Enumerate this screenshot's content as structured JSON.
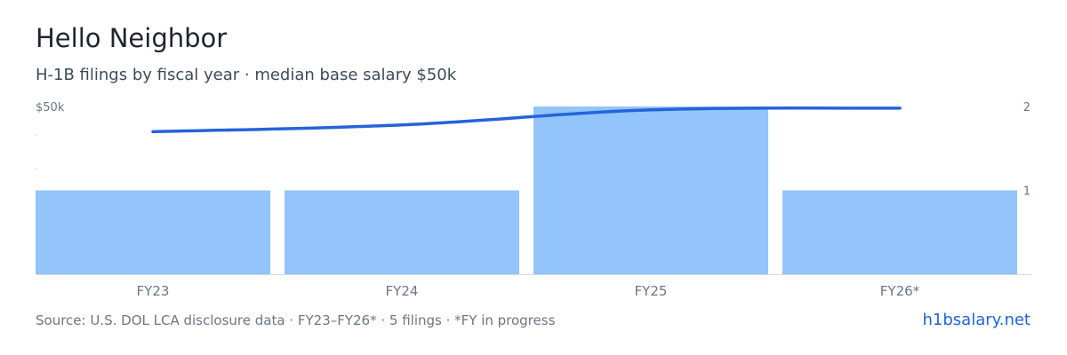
{
  "header": {
    "title": "Hello Neighbor",
    "subtitle": "H-1B filings by fiscal year · median base salary $50k"
  },
  "footer": {
    "source": "Source: U.S. DOL LCA disclosure data · FY23–FY26* · 5 filings · *FY in progress",
    "link": "h1bsalary.net"
  },
  "colors": {
    "bar": "#93c4fa",
    "line": "#2563d9",
    "axis_text": "#6b7785",
    "baseline": "#d5dae0"
  },
  "chart_data": {
    "type": "bar",
    "categories": [
      "FY23",
      "FY24",
      "FY25",
      "FY26*"
    ],
    "series": [
      {
        "type": "bar",
        "axis": "right",
        "values": [
          1,
          1,
          2,
          1
        ]
      },
      {
        "type": "line",
        "axis": "left",
        "values": [
          42.5,
          44.5,
          49,
          49.5
        ]
      }
    ],
    "left_axis": {
      "ylim": [
        0,
        50
      ],
      "tick_labels": [
        "$50k"
      ]
    },
    "right_axis": {
      "ylim": [
        0,
        2
      ],
      "tick_labels": [
        "1",
        "2"
      ]
    },
    "legend": "none",
    "grid": false
  }
}
